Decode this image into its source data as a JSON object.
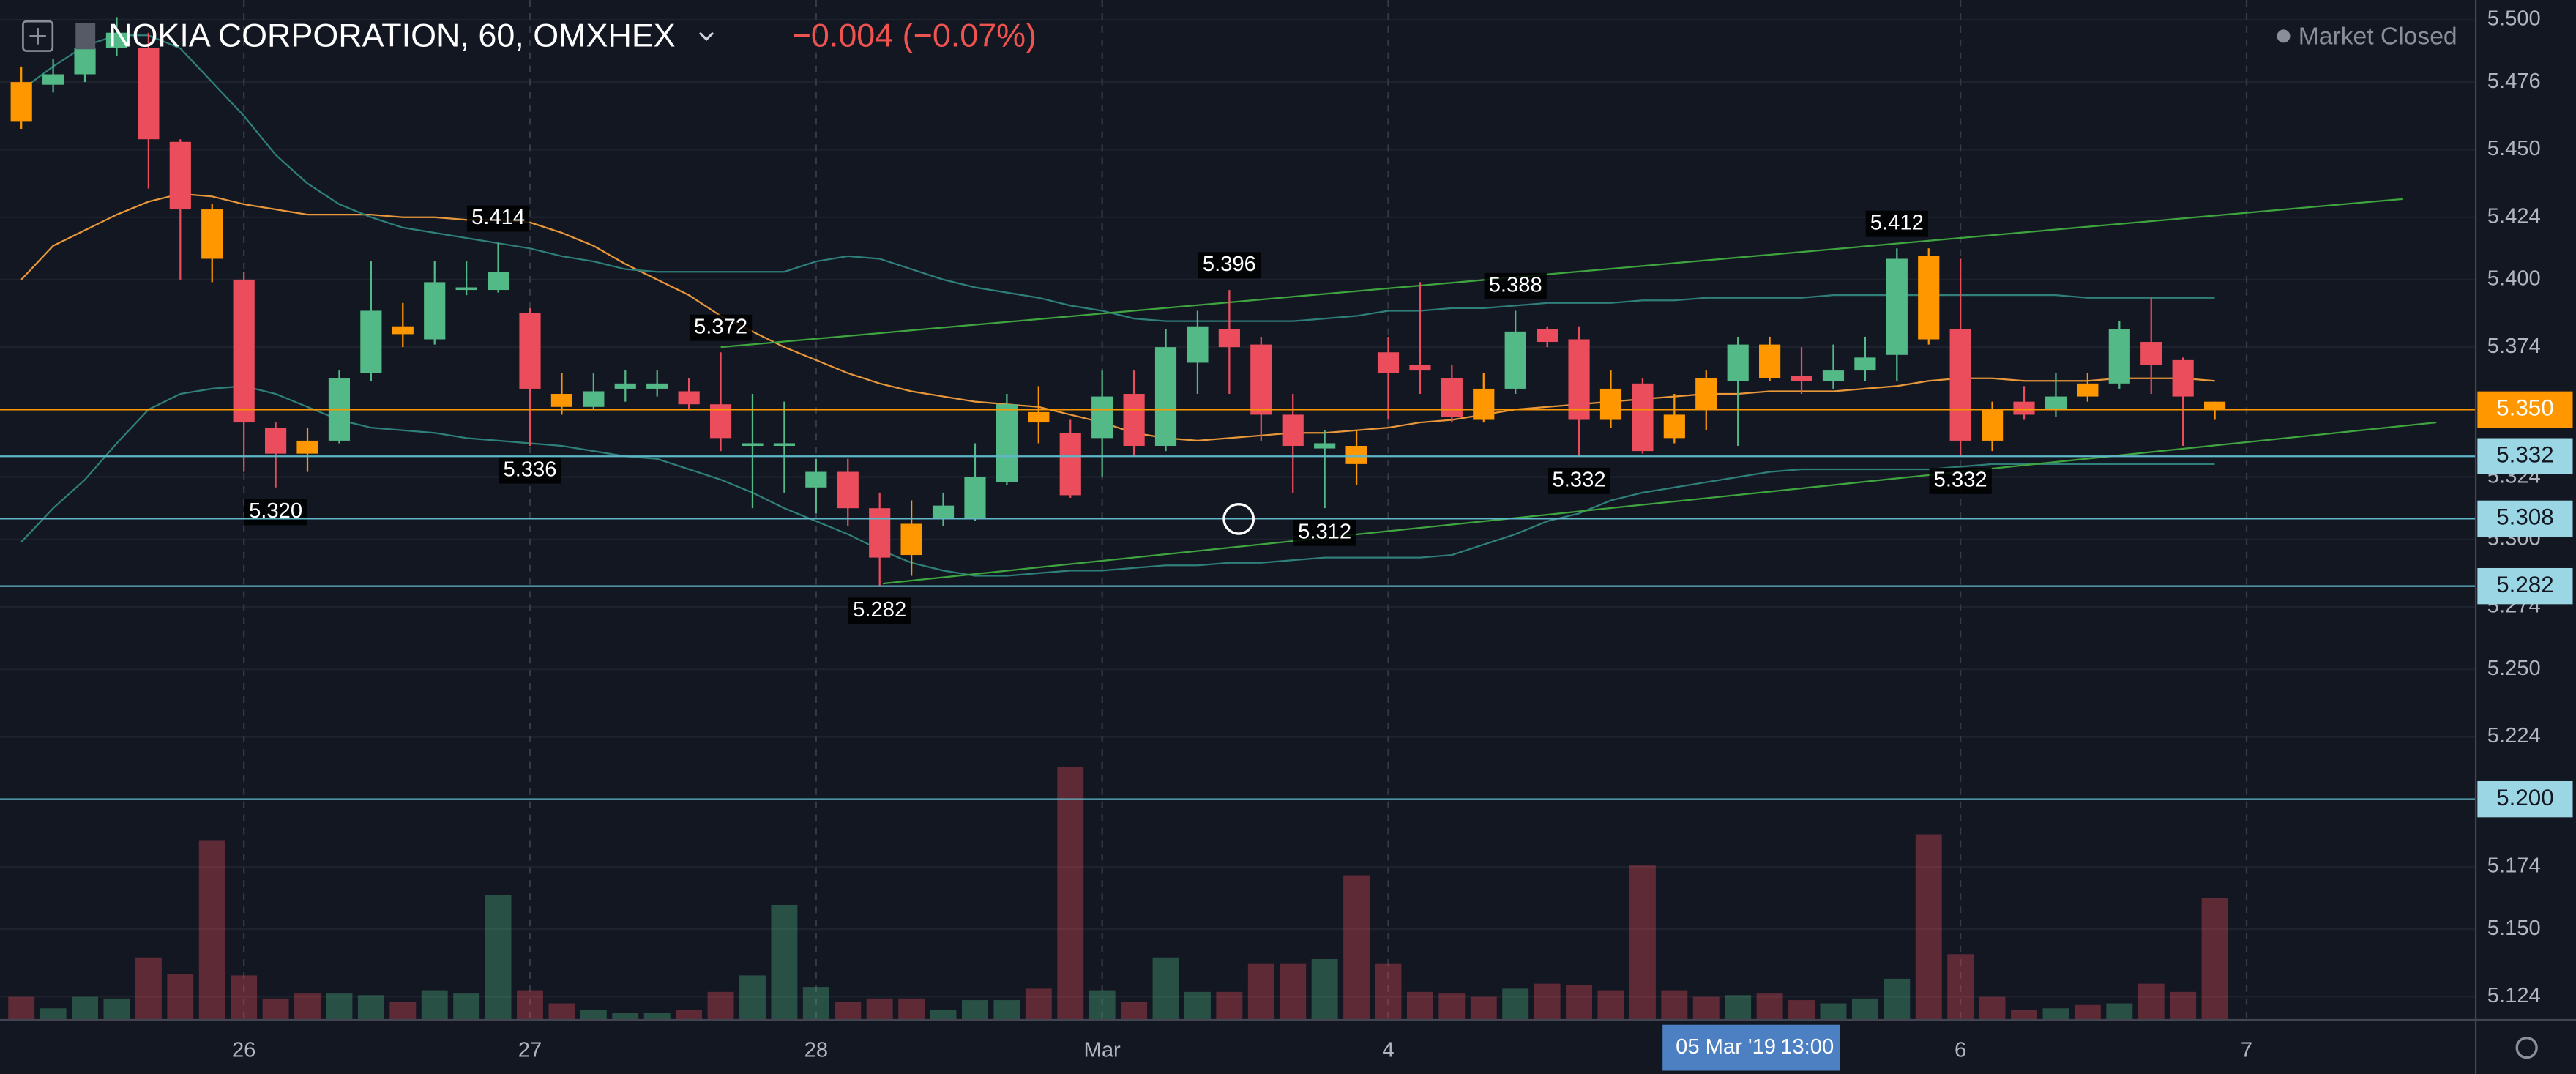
{
  "chart_data": {
    "type": "candlestick",
    "title": "NOKIA CORPORATION, 60, OMXHEX",
    "change": "−0.004 (−0.07%)",
    "status": "Market Closed",
    "crosshair": {
      "date": "05 Mar '19",
      "time": "13:00"
    },
    "xlim": [
      -0.672,
      77.21
    ],
    "xticks": [
      {
        "value": 7,
        "label": "26"
      },
      {
        "value": 16,
        "label": "27"
      },
      {
        "value": 25,
        "label": "28"
      },
      {
        "value": 34,
        "label": "Mar"
      },
      {
        "value": 43,
        "label": "4"
      },
      {
        "value": 61,
        "label": "6"
      },
      {
        "value": 70,
        "label": "7"
      }
    ],
    "ylim": [
      5.1151,
      5.5076
    ],
    "yticks": [
      {
        "value": 5.5,
        "label": "5.500"
      },
      5.476,
      {
        "value": 5.45,
        "label": "5.450"
      },
      5.424,
      {
        "value": 5.4,
        "label": "5.400"
      },
      5.374,
      {
        "value": 5.35,
        "label": "5.350"
      },
      5.324,
      {
        "value": 5.3,
        "label": "5.300"
      },
      5.274,
      {
        "value": 5.25,
        "label": "5.250"
      },
      5.224,
      {
        "value": 5.2,
        "label": "5.200"
      },
      5.174,
      {
        "value": 5.15,
        "label": "5.150"
      },
      5.124
    ],
    "grid": true,
    "up_color": "#53b987",
    "down_color": "#eb4d5c",
    "candles": {
      "open": [
        5.476,
        5.475,
        5.479,
        5.489,
        5.489,
        5.453,
        5.427,
        5.4,
        5.343,
        5.338,
        5.338,
        5.364,
        5.382,
        5.377,
        5.396,
        5.396,
        5.387,
        5.356,
        5.351,
        5.358,
        5.358,
        5.357,
        5.352,
        5.336,
        5.336,
        5.32,
        5.326,
        5.312,
        5.306,
        5.308,
        5.308,
        5.322,
        5.349,
        5.341,
        5.339,
        5.356,
        5.336,
        5.368,
        5.381,
        5.375,
        5.348,
        5.335,
        5.336,
        5.372,
        5.367,
        5.362,
        5.358,
        5.358,
        5.381,
        5.377,
        5.358,
        5.36,
        5.348,
        5.362,
        5.361,
        5.375,
        5.363,
        5.361,
        5.365,
        5.371,
        5.409,
        5.381,
        5.35,
        5.353,
        5.35,
        5.36,
        5.36,
        5.376,
        5.369,
        5.353
      ],
      "high": [
        5.482,
        5.485,
        5.495,
        5.501,
        5.495,
        5.454,
        5.429,
        5.403,
        5.345,
        5.343,
        5.365,
        5.407,
        5.391,
        5.407,
        5.407,
        5.414,
        5.389,
        5.364,
        5.364,
        5.365,
        5.365,
        5.362,
        5.372,
        5.356,
        5.353,
        5.331,
        5.331,
        5.318,
        5.315,
        5.318,
        5.337,
        5.356,
        5.359,
        5.346,
        5.365,
        5.365,
        5.381,
        5.388,
        5.396,
        5.378,
        5.356,
        5.342,
        5.342,
        5.378,
        5.399,
        5.367,
        5.364,
        5.388,
        5.382,
        5.382,
        5.365,
        5.362,
        5.356,
        5.365,
        5.378,
        5.378,
        5.374,
        5.375,
        5.378,
        5.412,
        5.412,
        5.408,
        5.353,
        5.359,
        5.364,
        5.364,
        5.384,
        5.393,
        5.37,
        5.353
      ],
      "low": [
        5.458,
        5.472,
        5.476,
        5.486,
        5.435,
        5.4,
        5.399,
        5.326,
        5.32,
        5.326,
        5.337,
        5.361,
        5.374,
        5.375,
        5.394,
        5.395,
        5.336,
        5.348,
        5.35,
        5.353,
        5.355,
        5.35,
        5.334,
        5.312,
        5.318,
        5.31,
        5.305,
        5.282,
        5.286,
        5.305,
        5.307,
        5.321,
        5.337,
        5.316,
        5.324,
        5.332,
        5.334,
        5.356,
        5.356,
        5.338,
        5.318,
        5.312,
        5.321,
        5.346,
        5.356,
        5.345,
        5.345,
        5.356,
        5.374,
        5.332,
        5.343,
        5.333,
        5.337,
        5.342,
        5.336,
        5.361,
        5.356,
        5.358,
        5.361,
        5.361,
        5.375,
        5.332,
        5.334,
        5.346,
        5.347,
        5.353,
        5.358,
        5.356,
        5.336,
        5.346
      ],
      "close": [
        5.461,
        5.479,
        5.489,
        5.495,
        5.454,
        5.427,
        5.408,
        5.345,
        5.333,
        5.333,
        5.362,
        5.388,
        5.379,
        5.399,
        5.397,
        5.403,
        5.358,
        5.351,
        5.357,
        5.36,
        5.36,
        5.352,
        5.339,
        5.337,
        5.337,
        5.326,
        5.312,
        5.293,
        5.294,
        5.313,
        5.324,
        5.352,
        5.345,
        5.317,
        5.355,
        5.336,
        5.374,
        5.382,
        5.374,
        5.348,
        5.336,
        5.337,
        5.329,
        5.364,
        5.365,
        5.347,
        5.346,
        5.38,
        5.376,
        5.346,
        5.346,
        5.334,
        5.339,
        5.35,
        5.375,
        5.362,
        5.361,
        5.365,
        5.37,
        5.408,
        5.377,
        5.338,
        5.338,
        5.348,
        5.355,
        5.355,
        5.381,
        5.367,
        5.355,
        5.35
      ],
      "colors": [
        "#ff9800",
        "#53b987",
        "#53b987",
        "#53b987",
        "#eb4d5c",
        "#eb4d5c",
        "#ff9800",
        "#eb4d5c",
        "#eb4d5c",
        "#ff9800",
        "#53b987",
        "#53b987",
        "#ff9800",
        "#53b987",
        "#53b987",
        "#53b987",
        "#eb4d5c",
        "#ff9800",
        "#53b987",
        "#53b987",
        "#53b987",
        "#eb4d5c",
        "#eb4d5c",
        "#53b987",
        "#53b987",
        "#53b987",
        "#eb4d5c",
        "#eb4d5c",
        "#ff9800",
        "#53b987",
        "#53b987",
        "#53b987",
        "#ff9800",
        "#eb4d5c",
        "#53b987",
        "#eb4d5c",
        "#53b987",
        "#53b987",
        "#eb4d5c",
        "#eb4d5c",
        "#eb4d5c",
        "#53b987",
        "#ff9800",
        "#eb4d5c",
        "#eb4d5c",
        "#eb4d5c",
        "#ff9800",
        "#53b987",
        "#eb4d5c",
        "#eb4d5c",
        "#ff9800",
        "#eb4d5c",
        "#ff9800",
        "#ff9800",
        "#53b987",
        "#ff9800",
        "#eb4d5c",
        "#53b987",
        "#53b987",
        "#53b987",
        "#ff9800",
        "#eb4d5c",
        "#ff9800",
        "#eb4d5c",
        "#53b987",
        "#ff9800",
        "#53b987",
        "#eb4d5c",
        "#eb4d5c",
        "#ff9800"
      ],
      "high_labels": [
        null,
        null,
        null,
        null,
        null,
        null,
        null,
        null,
        null,
        null,
        null,
        null,
        null,
        null,
        null,
        "5.414",
        null,
        null,
        null,
        null,
        null,
        null,
        "5.372",
        null,
        null,
        null,
        null,
        null,
        null,
        null,
        null,
        null,
        null,
        null,
        null,
        null,
        null,
        null,
        "5.396",
        null,
        null,
        null,
        null,
        null,
        null,
        null,
        null,
        "5.388",
        null,
        null,
        null,
        null,
        null,
        null,
        null,
        null,
        null,
        null,
        null,
        "5.412",
        null,
        null,
        null,
        null,
        null,
        null,
        null,
        null,
        null,
        null
      ],
      "low_labels": [
        null,
        null,
        null,
        null,
        null,
        null,
        null,
        null,
        "5.320",
        null,
        null,
        null,
        null,
        null,
        null,
        null,
        "5.336",
        null,
        null,
        null,
        null,
        null,
        null,
        null,
        null,
        null,
        null,
        "5.282",
        null,
        null,
        null,
        null,
        null,
        null,
        null,
        null,
        null,
        null,
        null,
        null,
        null,
        "5.312",
        null,
        null,
        null,
        null,
        null,
        null,
        null,
        "5.332",
        null,
        null,
        null,
        null,
        null,
        null,
        null,
        null,
        null,
        null,
        null,
        "5.332",
        null,
        null,
        null,
        null,
        null,
        null,
        null,
        null
      ]
    },
    "volume": [
      14,
      7,
      14,
      13,
      38,
      28,
      109,
      27,
      13,
      16,
      16,
      15,
      11,
      18,
      16,
      76,
      18,
      10,
      6,
      4,
      4,
      6,
      17,
      27,
      70,
      20,
      11,
      13,
      13,
      6,
      12,
      12,
      19,
      154,
      18,
      11,
      38,
      17,
      17,
      34,
      34,
      37,
      88,
      34,
      17,
      16,
      14,
      19,
      22,
      21,
      18,
      94,
      18,
      14,
      15,
      16,
      12,
      10,
      13,
      25,
      113,
      40,
      14,
      6,
      7,
      9,
      10,
      22,
      17,
      74
    ],
    "lines": [
      {
        "color": "#e8973a",
        "values": [
          5.4,
          5.413,
          5.419,
          5.425,
          5.43,
          5.433,
          5.432,
          5.429,
          5.427,
          5.425,
          5.425,
          5.425,
          5.424,
          5.424,
          5.423,
          5.423,
          5.422,
          5.418,
          5.413,
          5.406,
          5.4,
          5.394,
          5.386,
          5.38,
          5.374,
          5.369,
          5.364,
          5.36,
          5.357,
          5.355,
          5.353,
          5.352,
          5.351,
          5.348,
          5.345,
          5.341,
          5.339,
          5.338,
          5.339,
          5.34,
          5.341,
          5.341,
          5.342,
          5.343,
          5.345,
          5.346,
          5.348,
          5.35,
          5.351,
          5.352,
          5.353,
          5.354,
          5.355,
          5.356,
          5.356,
          5.357,
          5.357,
          5.357,
          5.358,
          5.359,
          5.361,
          5.362,
          5.362,
          5.361,
          5.361,
          5.361,
          5.362,
          5.362,
          5.362,
          5.361
        ]
      },
      {
        "color": "#2f7f7a",
        "values": [
          5.473,
          5.482,
          5.49,
          5.494,
          5.494,
          5.489,
          5.476,
          5.463,
          5.448,
          5.437,
          5.429,
          5.424,
          5.42,
          5.418,
          5.416,
          5.414,
          5.412,
          5.409,
          5.407,
          5.404,
          5.403,
          5.403,
          5.403,
          5.403,
          5.403,
          5.407,
          5.409,
          5.408,
          5.404,
          5.4,
          5.397,
          5.395,
          5.393,
          5.39,
          5.388,
          5.385,
          5.384,
          5.384,
          5.384,
          5.384,
          5.384,
          5.385,
          5.386,
          5.388,
          5.388,
          5.389,
          5.389,
          5.39,
          5.391,
          5.391,
          5.391,
          5.392,
          5.392,
          5.393,
          5.393,
          5.393,
          5.393,
          5.394,
          5.394,
          5.394,
          5.394,
          5.394,
          5.394,
          5.394,
          5.394,
          5.393,
          5.393,
          5.393,
          5.393,
          5.393
        ]
      },
      {
        "color": "#2f7f7a",
        "values": [
          5.299,
          5.312,
          5.323,
          5.337,
          5.35,
          5.356,
          5.358,
          5.359,
          5.356,
          5.351,
          5.346,
          5.343,
          5.342,
          5.341,
          5.339,
          5.338,
          5.337,
          5.336,
          5.334,
          5.332,
          5.331,
          5.327,
          5.323,
          5.318,
          5.312,
          5.307,
          5.302,
          5.296,
          5.291,
          5.288,
          5.286,
          5.286,
          5.287,
          5.288,
          5.288,
          5.289,
          5.29,
          5.29,
          5.291,
          5.291,
          5.292,
          5.293,
          5.293,
          5.293,
          5.293,
          5.294,
          5.298,
          5.302,
          5.307,
          5.31,
          5.315,
          5.318,
          5.32,
          5.322,
          5.324,
          5.326,
          5.327,
          5.327,
          5.327,
          5.327,
          5.327,
          5.328,
          5.329,
          5.329,
          5.329,
          5.329,
          5.329,
          5.329,
          5.329,
          5.329
        ]
      }
    ],
    "trendlines": [
      {
        "color": "#3fa63f",
        "x": [
          22,
          74.9
        ],
        "y": [
          5.374,
          5.431
        ]
      },
      {
        "color": "#3fa63f",
        "x": [
          27.1,
          75.97
        ],
        "y": [
          5.283,
          5.345
        ]
      }
    ],
    "levels": [
      5.332,
      5.308,
      5.282,
      {
        "value": 5.2,
        "label": "5.200"
      }
    ],
    "level_color": "#5fb6c6",
    "last_price": {
      "value": 5.35,
      "label": "5.350"
    },
    "last_price_color": "#ff9800"
  }
}
